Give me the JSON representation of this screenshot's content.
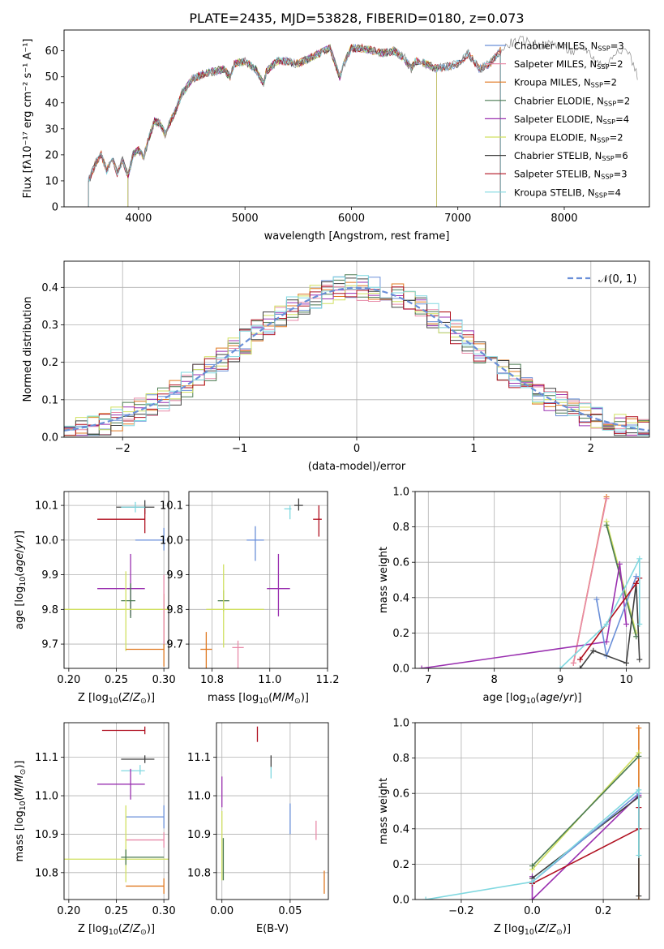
{
  "figure_title": "PLATE=2435, MJD=53828, FIBERID=0180, z=0.073",
  "colors": {
    "chabrier_miles": "#6a8fd8",
    "salpeter_miles": "#e88aa8",
    "kroupa_miles": "#e07820",
    "chabrier_elodie": "#4a7a50",
    "salpeter_elodie": "#9a30b0",
    "kroupa_elodie": "#d0e060",
    "chabrier_stelib": "#404040",
    "salpeter_stelib": "#b01020",
    "kroupa_stelib": "#80d8e0"
  },
  "chart_data": [
    {
      "id": "spectrum",
      "type": "line",
      "xlabel": "wavelength [Angstrom, rest frame]",
      "ylabel": "Flux [fλ10⁻¹⁷ erg cm⁻² s⁻¹ A⁻¹]",
      "xlim": [
        3300,
        8800
      ],
      "ylim": [
        0,
        68
      ],
      "xticks": [
        4000,
        5000,
        6000,
        7000,
        8000
      ],
      "yticks": [
        0,
        10,
        20,
        30,
        40,
        50,
        60
      ],
      "legend_position": "top-right",
      "legend": [
        {
          "label": "Chabrier MILES, N",
          "sub": "SSP",
          "val": "=3",
          "color": "#6a8fd8"
        },
        {
          "label": "Salpeter MILES, N",
          "sub": "SSP",
          "val": "=2",
          "color": "#e88aa8"
        },
        {
          "label": "Kroupa MILES, N",
          "sub": "SSP",
          "val": "=2",
          "color": "#e07820"
        },
        {
          "label": "Chabrier ELODIE, N",
          "sub": "SSP",
          "val": "=2",
          "color": "#4a7a50"
        },
        {
          "label": "Salpeter ELODIE, N",
          "sub": "SSP",
          "val": "=4",
          "color": "#9a30b0"
        },
        {
          "label": "Kroupa ELODIE, N",
          "sub": "SSP",
          "val": "=2",
          "color": "#d0e060"
        },
        {
          "label": "Chabrier STELIB, N",
          "sub": "SSP",
          "val": "=6",
          "color": "#404040"
        },
        {
          "label": "Salpeter STELIB, N",
          "sub": "SSP",
          "val": "=3",
          "color": "#b01020"
        },
        {
          "label": "Kroupa STELIB, N",
          "sub": "SSP",
          "val": "=4",
          "color": "#80d8e0"
        }
      ],
      "series": [
        {
          "name": "data",
          "color": "#888888",
          "x": [
            3530,
            3560,
            3600,
            3650,
            3700,
            3750,
            3800,
            3850,
            3900,
            3950,
            4000,
            4050,
            4100,
            4150,
            4200,
            4250,
            4300,
            4350,
            4400,
            4500,
            4600,
            4700,
            4800,
            4860,
            4900,
            5000,
            5100,
            5175,
            5200,
            5300,
            5400,
            5500,
            5600,
            5700,
            5800,
            5890,
            5950,
            6000,
            6100,
            6200,
            6300,
            6400,
            6500,
            6563,
            6600,
            6700,
            6800,
            6900,
            7000,
            7100,
            7200,
            7300,
            7400,
            7500,
            7600,
            7700,
            7800,
            7900,
            8000,
            8100,
            8200,
            8300,
            8400,
            8500,
            8600,
            8700
          ],
          "y": [
            10,
            13,
            17,
            20,
            14,
            19,
            13,
            18,
            12,
            20,
            22,
            19,
            27,
            33,
            32,
            28,
            33,
            37,
            43,
            49,
            51,
            52,
            53,
            50,
            55,
            56,
            53,
            47,
            52,
            56,
            56,
            55,
            57,
            59,
            61,
            50,
            57,
            61,
            61,
            60,
            59,
            60,
            57,
            53,
            56,
            55,
            53,
            54,
            55,
            59,
            53,
            55,
            60,
            63,
            64,
            63,
            62,
            63,
            61,
            59,
            61,
            56,
            54,
            61,
            60,
            49
          ]
        }
      ]
    },
    {
      "id": "residuals",
      "type": "bar",
      "xlabel": "(data-model)/error",
      "ylabel": "Normed distribution",
      "xlim": [
        -2.5,
        2.5
      ],
      "ylim": [
        0,
        0.47
      ],
      "xticks": [
        -2,
        -1,
        0,
        1,
        2
      ],
      "yticks": [
        0.0,
        0.1,
        0.2,
        0.3,
        0.4
      ],
      "legend_position": "top-right",
      "legend": [
        {
          "label": "𝒩(0, 1)",
          "color": "#6a8fd8"
        }
      ],
      "gaussian": {
        "mean": 0,
        "sigma": 1
      }
    },
    {
      "id": "z_vs_age",
      "type": "scatter",
      "xlabel": "Z [log",
      "ylabel": "age  [log",
      "xlim": [
        0.195,
        0.305
      ],
      "ylim": [
        9.63,
        10.14
      ],
      "xticks": [
        0.2,
        0.25,
        0.3
      ],
      "yticks": [
        9.7,
        9.8,
        9.9,
        10.0,
        10.1
      ],
      "points": [
        {
          "x": 0.28,
          "y": 10.095,
          "xerr": [
            0.03,
            0.01
          ],
          "yerr": [
            0.02,
            0.02
          ],
          "color": "#404040"
        },
        {
          "x": 0.27,
          "y": 10.095,
          "xerr": [
            0.015,
            0.01
          ],
          "yerr": [
            0.015,
            0.015
          ],
          "color": "#80d8e0"
        },
        {
          "x": 0.28,
          "y": 10.06,
          "xerr": [
            0.05,
            0.0
          ],
          "yerr": [
            0.04,
            0.03
          ],
          "color": "#b01020"
        },
        {
          "x": 0.3,
          "y": 10.0,
          "xerr": [
            0.03,
            0.0
          ],
          "yerr": [
            0.03,
            0.035
          ],
          "color": "#6a8fd8"
        },
        {
          "x": 0.265,
          "y": 9.86,
          "xerr": [
            0.035,
            0.015
          ],
          "yerr": [
            0.08,
            0.1
          ],
          "color": "#9a30b0"
        },
        {
          "x": 0.265,
          "y": 9.825,
          "xerr": [
            0.01,
            0.005
          ],
          "yerr": [
            0.05,
            0.05
          ],
          "color": "#4a7a50"
        },
        {
          "x": 0.26,
          "y": 9.8,
          "xerr": [
            0.065,
            0.045
          ],
          "yerr": [
            0.12,
            0.11
          ],
          "color": "#d0e060"
        },
        {
          "x": 0.3,
          "y": 9.685,
          "xerr": [
            0.04,
            0.0
          ],
          "yerr": [
            0.05,
            0.16
          ],
          "color": "#e07820"
        },
        {
          "x": 0.3,
          "y": 9.8,
          "xerr": [
            0.0,
            0.0
          ],
          "yerr": [
            0.1,
            0.1
          ],
          "color": "#e88aa8"
        }
      ]
    },
    {
      "id": "mass_vs_age",
      "type": "scatter",
      "xlabel": "mass [log",
      "ylabel": "",
      "xlim": [
        10.72,
        11.2
      ],
      "ylim": [
        9.63,
        10.14
      ],
      "xticks": [
        10.8,
        11.0,
        11.2
      ],
      "yticks": [
        9.7,
        9.8,
        9.9,
        10.0,
        10.1
      ],
      "points": [
        {
          "x": 11.1,
          "y": 10.1,
          "xerr": [
            0.015,
            0.015
          ],
          "yerr": [
            0.015,
            0.02
          ],
          "color": "#404040"
        },
        {
          "x": 11.07,
          "y": 10.09,
          "xerr": [
            0.02,
            0.005
          ],
          "yerr": [
            0.03,
            0.01
          ],
          "color": "#80d8e0"
        },
        {
          "x": 11.17,
          "y": 10.06,
          "xerr": [
            0.02,
            0.01
          ],
          "yerr": [
            0.05,
            0.04
          ],
          "color": "#b01020"
        },
        {
          "x": 10.95,
          "y": 10.0,
          "xerr": [
            0.03,
            0.03
          ],
          "yerr": [
            0.06,
            0.04
          ],
          "color": "#6a8fd8"
        },
        {
          "x": 11.03,
          "y": 9.86,
          "xerr": [
            0.04,
            0.04
          ],
          "yerr": [
            0.08,
            0.1
          ],
          "color": "#9a30b0"
        },
        {
          "x": 10.84,
          "y": 9.825,
          "xerr": [
            0.02,
            0.02
          ],
          "yerr": [
            0.03,
            0.03
          ],
          "color": "#4a7a50"
        },
        {
          "x": 10.84,
          "y": 9.8,
          "xerr": [
            0.06,
            0.14
          ],
          "yerr": [
            0.11,
            0.13
          ],
          "color": "#d0e060"
        },
        {
          "x": 10.78,
          "y": 9.685,
          "xerr": [
            0.02,
            0.02
          ],
          "yerr": [
            0.16,
            0.05
          ],
          "color": "#e07820"
        },
        {
          "x": 10.89,
          "y": 9.69,
          "xerr": [
            0.02,
            0.02
          ],
          "yerr": [
            0.08,
            0.02
          ],
          "color": "#e88aa8"
        }
      ]
    },
    {
      "id": "age_vs_weight",
      "type": "line",
      "xlabel": "age  [log",
      "ylabel": "mass weight",
      "xlim": [
        6.8,
        10.35
      ],
      "ylim": [
        0,
        1.0
      ],
      "xticks": [
        7,
        8,
        9,
        10
      ],
      "yticks": [
        0.0,
        0.2,
        0.4,
        0.6,
        0.8,
        1.0
      ],
      "series": [
        {
          "name": "",
          "color": "#e07820",
          "x": [
            9.2,
            9.7
          ],
          "y": [
            0.03,
            0.97
          ]
        },
        {
          "name": "",
          "color": "#e88aa8",
          "x": [
            9.2,
            9.7
          ],
          "y": [
            0.03,
            0.96
          ]
        },
        {
          "name": "",
          "color": "#d0e060",
          "x": [
            9.7,
            10.15
          ],
          "y": [
            0.83,
            0.2
          ]
        },
        {
          "name": "",
          "color": "#4a7a50",
          "x": [
            9.7,
            10.15
          ],
          "y": [
            0.81,
            0.18
          ]
        },
        {
          "name": "",
          "color": "#9a30b0",
          "x": [
            6.9,
            9.7,
            9.9,
            10.0
          ],
          "y": [
            0.0,
            0.15,
            0.59,
            0.25
          ]
        },
        {
          "name": "",
          "color": "#6a8fd8",
          "x": [
            9.55,
            9.7,
            10.15
          ],
          "y": [
            0.39,
            0.07,
            0.52
          ]
        },
        {
          "name": "",
          "color": "#404040",
          "x": [
            9.3,
            9.5,
            10.0,
            10.15,
            10.2
          ],
          "y": [
            0.0,
            0.1,
            0.03,
            0.48,
            0.05
          ]
        },
        {
          "name": "",
          "color": "#b01020",
          "x": [
            9.3,
            10.15,
            10.2
          ],
          "y": [
            0.05,
            0.48,
            0.51
          ]
        },
        {
          "name": "",
          "color": "#80d8e0",
          "x": [
            9.0,
            9.7,
            10.2,
            10.2
          ],
          "y": [
            0.0,
            0.25,
            0.62,
            0.25
          ]
        }
      ]
    },
    {
      "id": "z_vs_mass",
      "type": "scatter",
      "xlabel": "Z [log",
      "ylabel": "mass [log",
      "xlim": [
        0.195,
        0.305
      ],
      "ylim": [
        10.73,
        11.19
      ],
      "xticks": [
        0.2,
        0.25,
        0.3
      ],
      "yticks": [
        10.8,
        10.9,
        11.0,
        11.1
      ],
      "points": [
        {
          "x": 0.28,
          "y": 11.17,
          "xerr": [
            0.045,
            0.0
          ],
          "yerr": [
            0.01,
            0.01
          ],
          "color": "#b01020"
        },
        {
          "x": 0.28,
          "y": 11.095,
          "xerr": [
            0.025,
            0.01
          ],
          "yerr": [
            0.01,
            0.01
          ],
          "color": "#404040"
        },
        {
          "x": 0.275,
          "y": 11.065,
          "xerr": [
            0.02,
            0.005
          ],
          "yerr": [
            0.01,
            0.015
          ],
          "color": "#80d8e0"
        },
        {
          "x": 0.265,
          "y": 11.03,
          "xerr": [
            0.035,
            0.015
          ],
          "yerr": [
            0.04,
            0.04
          ],
          "color": "#9a30b0"
        },
        {
          "x": 0.3,
          "y": 10.945,
          "xerr": [
            0.04,
            0.0
          ],
          "yerr": [
            0.03,
            0.03
          ],
          "color": "#6a8fd8"
        },
        {
          "x": 0.3,
          "y": 10.885,
          "xerr": [
            0.04,
            0.0
          ],
          "yerr": [
            0.02,
            0.02
          ],
          "color": "#e88aa8"
        },
        {
          "x": 0.26,
          "y": 10.835,
          "xerr": [
            0.065,
            0.045
          ],
          "yerr": [
            0.06,
            0.14
          ],
          "color": "#d0e060"
        },
        {
          "x": 0.26,
          "y": 10.84,
          "xerr": [
            0.005,
            0.04
          ],
          "yerr": [
            0.02,
            0.02
          ],
          "color": "#4a7a50"
        },
        {
          "x": 0.3,
          "y": 10.765,
          "xerr": [
            0.04,
            0.0
          ],
          "yerr": [
            0.02,
            0.02
          ],
          "color": "#e07820"
        }
      ]
    },
    {
      "id": "ebv_vs_mass",
      "type": "scatter",
      "xlabel": "E(B-V)",
      "ylabel": "",
      "xlim": [
        -0.004,
        0.078
      ],
      "ylim": [
        10.73,
        11.19
      ],
      "xticks": [
        0.0,
        0.05
      ],
      "yticks": [
        10.8,
        10.9,
        11.0,
        11.1
      ],
      "points": [
        {
          "x": 0.026,
          "y": 11.16,
          "yerr": [
            0.02,
            0.02
          ],
          "color": "#b01020"
        },
        {
          "x": 0.036,
          "y": 11.09,
          "yerr": [
            0.015,
            0.015
          ],
          "color": "#404040"
        },
        {
          "x": 0.036,
          "y": 11.06,
          "yerr": [
            0.015,
            0.015
          ],
          "color": "#80d8e0"
        },
        {
          "x": 0.0,
          "y": 11.03,
          "yerr": [
            0.06,
            0.02
          ],
          "color": "#9a30b0"
        },
        {
          "x": 0.05,
          "y": 10.94,
          "yerr": [
            0.04,
            0.04
          ],
          "color": "#6a8fd8"
        },
        {
          "x": 0.069,
          "y": 10.91,
          "yerr": [
            0.025,
            0.025
          ],
          "color": "#e88aa8"
        },
        {
          "x": 0.0,
          "y": 10.87,
          "yerr": [
            0.09,
            0.09
          ],
          "color": "#d0e060"
        },
        {
          "x": 0.001,
          "y": 10.85,
          "yerr": [
            0.07,
            0.04
          ],
          "color": "#4a7a50"
        },
        {
          "x": 0.075,
          "y": 10.775,
          "yerr": [
            0.03,
            0.03
          ],
          "color": "#e07820"
        }
      ]
    },
    {
      "id": "z_vs_weight",
      "type": "line",
      "xlabel": "Z [log",
      "ylabel": "mass weight",
      "xlim": [
        -0.33,
        0.33
      ],
      "ylim": [
        0,
        1.0
      ],
      "xticks": [
        -0.2,
        0.0,
        0.2
      ],
      "yticks": [
        0.0,
        0.2,
        0.4,
        0.6,
        0.8,
        1.0
      ],
      "series": [
        {
          "name": "",
          "color": "#e07820",
          "x": [
            0.3,
            0.3
          ],
          "y": [
            0.0,
            0.97
          ]
        },
        {
          "name": "",
          "color": "#d0e060",
          "x": [
            0.0,
            0.3
          ],
          "y": [
            0.17,
            0.83
          ]
        },
        {
          "name": "",
          "color": "#4a7a50",
          "x": [
            0.0,
            0.3
          ],
          "y": [
            0.19,
            0.81
          ]
        },
        {
          "name": "",
          "color": "#9a30b0",
          "x": [
            0.0,
            0.0,
            0.3
          ],
          "y": [
            0.13,
            0.0,
            0.59
          ]
        },
        {
          "name": "",
          "color": "#404040",
          "x": [
            0.0,
            0.3,
            0.3
          ],
          "y": [
            0.12,
            0.58,
            0.02
          ]
        },
        {
          "name": "",
          "color": "#6a8fd8",
          "x": [
            0.0,
            0.3
          ],
          "y": [
            0.1,
            0.6
          ]
        },
        {
          "name": "",
          "color": "#b01020",
          "x": [
            0.0,
            0.3,
            0.3
          ],
          "y": [
            0.09,
            0.4,
            0.52
          ]
        },
        {
          "name": "",
          "color": "#80d8e0",
          "x": [
            -0.3,
            0.0,
            0.3,
            0.3
          ],
          "y": [
            0.0,
            0.1,
            0.62,
            0.25
          ]
        }
      ]
    }
  ]
}
